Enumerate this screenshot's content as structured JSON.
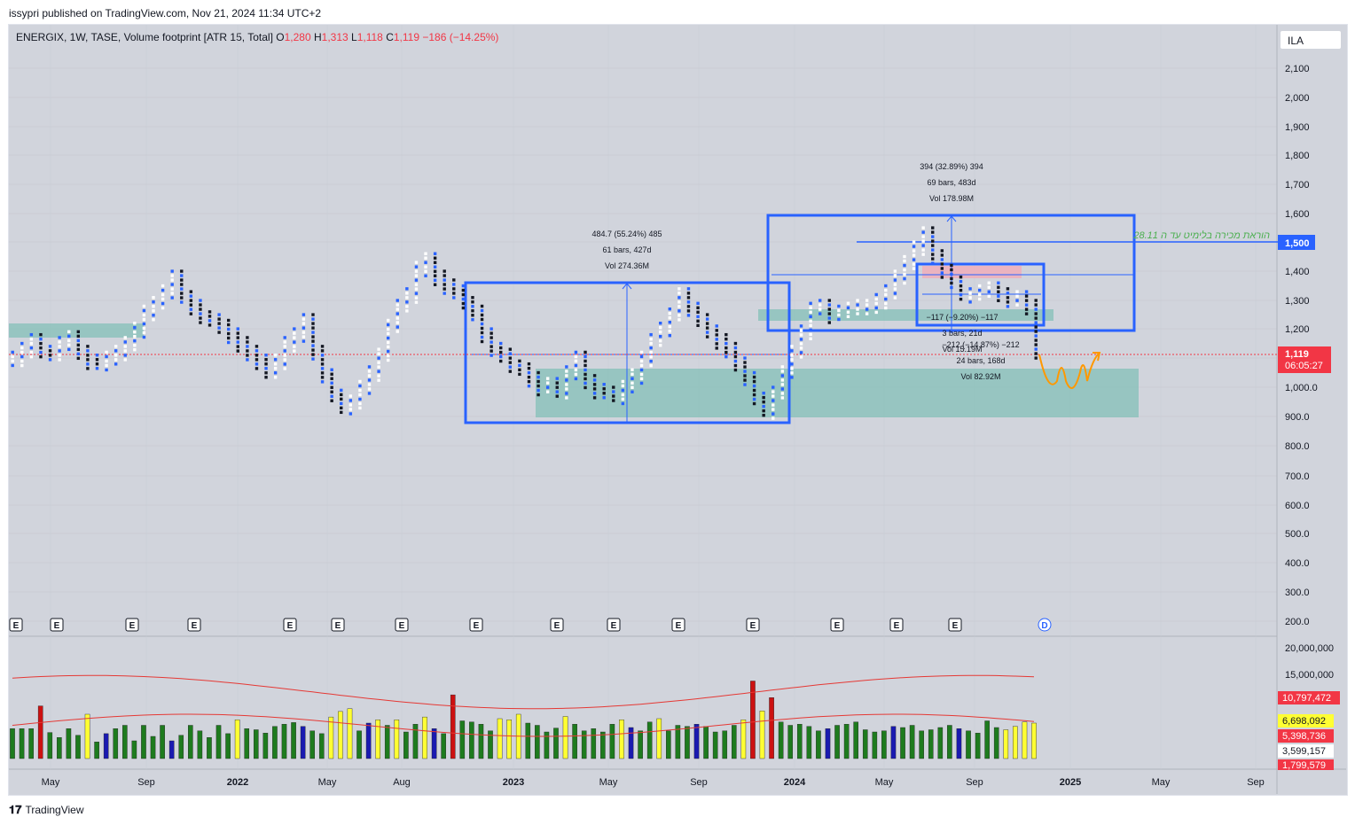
{
  "header": {
    "published": "issypri published on TradingView.com, Nov 21, 2024 11:34 UTC+2"
  },
  "legend": {
    "symbol": "ENERGIX, 1W, TASE, Volume footprint [ATR 15, Total]",
    "o_label": "O",
    "o_val": "1,280",
    "h_label": "H",
    "h_val": "1,313",
    "l_label": "L",
    "l_val": "1,118",
    "c_label": "C",
    "c_val": "1,119",
    "change": "−186 (−14.25%)"
  },
  "currency": "ILA",
  "annotations": {
    "m1_line1": "484.7 (55.24%) 485",
    "m1_line2": "61 bars, 427d",
    "m1_line3": "Vol 274.36M",
    "m2_line1": "394 (32.89%) 394",
    "m2_line2": "69 bars, 483d",
    "m2_line3": "Vol 178.98M",
    "m3_line1": "−117 (−9.20%) −117",
    "m3_line2": "3 bars, 21d",
    "m3_line3": "Vol 15.19M",
    "m4_line1": "−212 (−14.87%) −212",
    "m4_line2": "24 bars, 168d",
    "m4_line3": "Vol 82.92M",
    "hebrew_note": "הוראת מכירה בלימיט עד ה 28.11"
  },
  "price_tags": {
    "limit": "1,500",
    "last": "1,119",
    "countdown": "06:05:27"
  },
  "volume_tags": {
    "t1": "10,797,472",
    "t2": "6,698,092",
    "t3": "5,398,736",
    "t4": "3,599,157",
    "t5": "1,799,579"
  },
  "events": [
    "E",
    "E",
    "E",
    "E",
    "E",
    "E",
    "E",
    "E",
    "E",
    "E",
    "E",
    "E",
    "E",
    "E",
    "D"
  ],
  "footer": {
    "brand": "TradingView"
  },
  "colors": {
    "up_volume": "#1e7b1e",
    "down_volume": "#1a1ab0",
    "high_volume": "#ffff33",
    "spike_volume": "#cc1111",
    "box": "#2962ff",
    "zone": "#7fbfb5",
    "tag_red": "#f23645",
    "tag_blue": "#2962ff",
    "note_green": "#4caf50",
    "orange": "#ff9800"
  },
  "chart_data": {
    "type": "line",
    "title": "",
    "x_ticks": [
      "May",
      "Sep",
      "2022",
      "May",
      "Aug",
      "2023",
      "May",
      "Sep",
      "2024",
      "May",
      "Sep",
      "2025",
      "May",
      "Sep"
    ],
    "y_ticks": [
      2100,
      2000,
      1900,
      1800,
      1700,
      1600,
      1500,
      1400,
      1300,
      1200,
      1100,
      1000,
      900,
      800,
      700,
      600,
      500,
      400,
      300,
      200
    ],
    "ylim": [
      180,
      2150
    ],
    "vol_ticks": [
      "20,000,000",
      "15,000,000"
    ],
    "series": [
      {
        "name": "",
        "values": [
          1100,
          1130,
          1160,
          1120,
          1110,
          1150,
          1170,
          1120,
          1090,
          1080,
          1100,
          1120,
          1150,
          1200,
          1260,
          1290,
          1330,
          1380,
          1310,
          1280,
          1240,
          1230,
          1210,
          1180,
          1150,
          1120,
          1090,
          1050,
          1090,
          1150,
          1180,
          1230,
          1120,
          1040,
          970,
          930,
          950,
          1000,
          1050,
          1110,
          1210,
          1280,
          1320,
          1410,
          1440,
          1380,
          1350,
          1330,
          1290,
          1260,
          1180,
          1130,
          1110,
          1070,
          1060,
          1030,
          1000,
          1010,
          990,
          1050,
          1100,
          1020,
          990,
          980,
          970,
          1000,
          1040,
          1100,
          1160,
          1200,
          1250,
          1320,
          1270,
          1230,
          1190,
          1160,
          1130,
          1080,
          1030,
          960,
          920,
          980,
          1050,
          1120,
          1190,
          1270,
          1280,
          1250,
          1260,
          1270,
          1280,
          1280,
          1300,
          1330,
          1380,
          1430,
          1480,
          1530,
          1450,
          1400,
          1360,
          1320,
          1320,
          1330,
          1340,
          1320,
          1300,
          1310,
          1280,
          1119
        ]
      }
    ],
    "volume": [
      5.4,
      5.4,
      5.4,
      9.5,
      4.7,
      3.8,
      5.4,
      4.2,
      8.0,
      3.0,
      4.5,
      5.4,
      6.0,
      3.2,
      6.0,
      4.0,
      6.0,
      3.2,
      4.2,
      6.0,
      5.0,
      3.8,
      6.0,
      4.5,
      7.0,
      5.4,
      5.2,
      4.6,
      5.8,
      6.2,
      6.5,
      5.8,
      5.0,
      4.5,
      7.5,
      8.5,
      9.0,
      5.0,
      6.4,
      7.0,
      6.0,
      7.0,
      4.8,
      6.2,
      7.5,
      5.4,
      4.5,
      11.5,
      6.8,
      6.6,
      6.2,
      5.0,
      7.2,
      7.0,
      8.0,
      6.4,
      6.0,
      4.8,
      5.5,
      7.6,
      6.2,
      5.0,
      5.4,
      4.8,
      6.2,
      7.0,
      5.6,
      5.0,
      6.6,
      7.2,
      5.0,
      6.0,
      5.8,
      6.2,
      5.8,
      4.8,
      5.0,
      6.0,
      7.0,
      14.0,
      8.6,
      11.0,
      6.6,
      6.0,
      6.2,
      5.8,
      5.0,
      5.4,
      6.0,
      6.2,
      6.6,
      5.2,
      4.8,
      5.0,
      5.8,
      5.6,
      6.0,
      5.0,
      5.2,
      5.6,
      6.0,
      5.4,
      5.0,
      4.6,
      6.8,
      5.6,
      5.2,
      5.8,
      6.6,
      6.4
    ]
  }
}
